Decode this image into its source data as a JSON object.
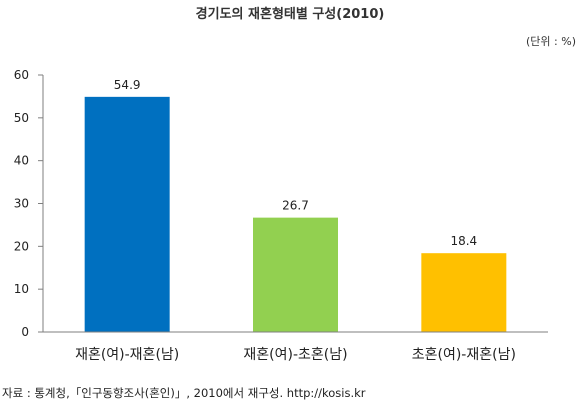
{
  "title": "경기도의 재혼형태별 구성(2010)",
  "unit": "(단위 : %)",
  "source": "자료 : 통계청,「인구동향조사(혼인)」, 2010에서 재구성. http://kosis.kr",
  "chart_data": {
    "type": "bar",
    "title": "경기도의 재혼형태별 구성(2010)",
    "xlabel": "",
    "ylabel": "",
    "categories": [
      "재혼(여)-재혼(남)",
      "재혼(여)-초혼(남)",
      "초혼(여)-재혼(남)"
    ],
    "values": [
      54.9,
      26.7,
      18.4
    ],
    "value_labels": [
      "54.9",
      "26.7",
      "18.4"
    ],
    "colors": [
      "#0070c0",
      "#92d050",
      "#ffc000"
    ],
    "ylim": [
      0,
      60
    ],
    "yticks": [
      0,
      10,
      20,
      30,
      40,
      50,
      60
    ],
    "grid": false,
    "legend": "none"
  }
}
